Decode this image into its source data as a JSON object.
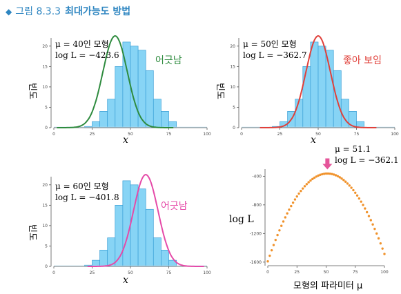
{
  "figure": {
    "bullet": "◆",
    "label": "그림 8.3.3",
    "title": "최대가능도 방법",
    "title_color": "#2e86c1"
  },
  "chart_data": [
    {
      "type": "bar",
      "panel": "top-left",
      "ylabel": "빈도",
      "xlabel": "x",
      "xticks": [
        0,
        25,
        50,
        75,
        100
      ],
      "yticks": [
        0,
        5,
        10,
        15,
        20
      ],
      "xlim": [
        0,
        100
      ],
      "ylim": [
        0,
        22
      ],
      "bin_width": 5,
      "bin_starts": [
        20,
        25,
        30,
        35,
        40,
        45,
        50,
        55,
        60,
        65,
        70,
        75
      ],
      "counts": [
        0.3,
        1.5,
        4,
        7,
        15,
        21,
        20,
        19,
        14,
        7,
        4,
        1.5
      ],
      "curve": {
        "mu": 40,
        "sigma": 8,
        "peak": 22.5,
        "color": "#2e8b3e"
      },
      "annotation_mu": "μ = 40인 모형",
      "annotation_logL": "log L = −423.6",
      "verdict": "어긋남",
      "verdict_color": "#2e8b3e"
    },
    {
      "type": "bar",
      "panel": "top-right",
      "ylabel": "빈도",
      "xlabel": "x",
      "xticks": [
        0,
        25,
        50,
        75,
        100
      ],
      "yticks": [
        0,
        5,
        10,
        15,
        20
      ],
      "xlim": [
        0,
        100
      ],
      "ylim": [
        0,
        22
      ],
      "bin_width": 5,
      "bin_starts": [
        20,
        25,
        30,
        35,
        40,
        45,
        50,
        55,
        60,
        65,
        70,
        75
      ],
      "counts": [
        0.3,
        1.5,
        4,
        7,
        15,
        21,
        20,
        19,
        14,
        7,
        4,
        1.5
      ],
      "curve": {
        "mu": 50,
        "sigma": 8,
        "peak": 22.5,
        "color": "#e0403a"
      },
      "annotation_mu": "μ = 50인 모형",
      "annotation_logL": "log L = −362.7",
      "verdict": "좋아 보임",
      "verdict_color": "#e0403a"
    },
    {
      "type": "bar",
      "panel": "bottom-left",
      "ylabel": "빈도",
      "xlabel": "x",
      "xticks": [
        0,
        25,
        50,
        75,
        100
      ],
      "yticks": [
        0,
        5,
        10,
        15,
        20
      ],
      "xlim": [
        0,
        100
      ],
      "ylim": [
        0,
        22
      ],
      "bin_width": 5,
      "bin_starts": [
        20,
        25,
        30,
        35,
        40,
        45,
        50,
        55,
        60,
        65,
        70,
        75
      ],
      "counts": [
        0.3,
        1.5,
        4,
        7,
        15,
        21,
        20,
        19,
        14,
        7,
        4,
        1.5
      ],
      "curve": {
        "mu": 60,
        "sigma": 8,
        "peak": 22.5,
        "color": "#e54aa8"
      },
      "annotation_mu": "μ = 60인 모형",
      "annotation_logL": "log L = −401.8",
      "verdict": "어긋남",
      "verdict_color": "#e54aa8"
    },
    {
      "type": "scatter",
      "panel": "bottom-right",
      "xlabel": "모형의 파라미터 μ",
      "ylabel": "log L",
      "xticks": [
        0,
        25,
        50,
        75,
        100
      ],
      "yticks": [
        -400,
        -800,
        -1200,
        -1600
      ],
      "xlim": [
        0,
        100
      ],
      "ylim": [
        -1650,
        -300
      ],
      "point_color": "#f0922b",
      "point_count": 60,
      "curve_vertex": {
        "mu": 51.1,
        "logL": -362.1
      },
      "curve_coefficient": 0.47,
      "annotation_mu": "μ = 51.1",
      "annotation_logL": "log L = −362.1",
      "arrow_color": "#e5559a"
    }
  ]
}
